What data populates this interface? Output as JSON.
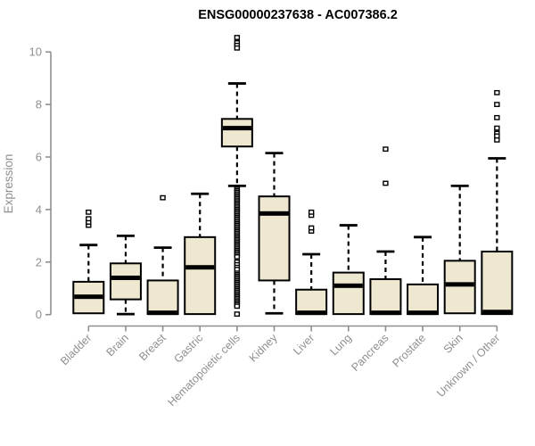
{
  "page": {
    "background": "#ffffff"
  },
  "colors": {
    "box_fill": "#EDE8CF",
    "box_stroke": "#000000",
    "median_color": "#000000",
    "whisker_color": "#000000",
    "outlier_stroke": "#000000",
    "outlier_fill": "#ffffff",
    "axis_color": "#8F8F8F",
    "label_color": "#8F8F8F",
    "title_color": "#000000"
  },
  "chart_data": {
    "type": "boxplot",
    "title": "ENSG00000237638 - AC007386.2",
    "xlabel": "",
    "ylabel": "Expression",
    "ylim": [
      0,
      10
    ],
    "yticks": [
      0,
      2,
      4,
      6,
      8,
      10
    ],
    "grid": false,
    "legend": "none",
    "categories": [
      "Bladder",
      "Brain",
      "Breast",
      "Gastric",
      "Hematopoietic cells",
      "Kidney",
      "Liver",
      "Lung",
      "Pancreas",
      "Prostate",
      "Skin",
      "Unknown / Other"
    ],
    "series": [
      {
        "category": "Bladder",
        "whisker_low": 0.05,
        "q1": 0.05,
        "median": 0.68,
        "q3": 1.25,
        "whisker_high": 2.65,
        "outliers": [
          3.4,
          3.52,
          3.65,
          3.9
        ]
      },
      {
        "category": "Brain",
        "whisker_low": 0.02,
        "q1": 0.58,
        "median": 1.4,
        "q3": 1.95,
        "whisker_high": 3.0,
        "outliers": []
      },
      {
        "category": "Breast",
        "whisker_low": 0.02,
        "q1": 0.02,
        "median": 0.07,
        "q3": 1.3,
        "whisker_high": 2.55,
        "outliers": [
          4.45
        ]
      },
      {
        "category": "Gastric",
        "whisker_low": 0.02,
        "q1": 0.02,
        "median": 1.8,
        "q3": 2.95,
        "whisker_high": 4.6,
        "outliers": []
      },
      {
        "category": "Hematopoietic cells",
        "whisker_low": 4.9,
        "q1": 6.4,
        "median": 7.1,
        "q3": 7.45,
        "whisker_high": 8.8,
        "outliers": [
          10.55,
          10.35,
          10.25,
          10.15,
          4.78,
          4.72,
          4.66,
          4.6,
          4.54,
          4.48,
          4.42,
          4.36,
          4.3,
          4.24,
          4.18,
          4.12,
          4.06,
          4.0,
          3.94,
          3.88,
          3.82,
          3.76,
          3.7,
          3.64,
          3.58,
          3.52,
          3.46,
          3.4,
          3.34,
          3.28,
          3.22,
          3.16,
          3.1,
          3.04,
          2.98,
          2.92,
          2.86,
          2.8,
          2.74,
          2.68,
          2.62,
          2.56,
          2.5,
          2.44,
          2.38,
          2.32,
          2.26,
          2.2,
          2.0,
          1.9,
          1.8,
          1.72,
          1.58,
          1.52,
          1.46,
          1.4,
          1.34,
          1.28,
          1.22,
          1.16,
          1.1,
          1.04,
          0.98,
          0.92,
          0.86,
          0.8,
          0.74,
          0.68,
          0.62,
          0.56,
          0.5,
          0.44,
          0.38,
          0.32,
          0.02
        ]
      },
      {
        "category": "Kidney",
        "whisker_low": 0.05,
        "q1": 1.3,
        "median": 3.85,
        "q3": 4.5,
        "whisker_high": 6.15,
        "outliers": []
      },
      {
        "category": "Liver",
        "whisker_low": 0.02,
        "q1": 0.02,
        "median": 0.07,
        "q3": 0.95,
        "whisker_high": 2.3,
        "outliers": [
          3.18,
          3.3,
          3.78,
          3.9
        ]
      },
      {
        "category": "Lung",
        "whisker_low": 0.02,
        "q1": 0.02,
        "median": 1.1,
        "q3": 1.6,
        "whisker_high": 3.4,
        "outliers": []
      },
      {
        "category": "Pancreas",
        "whisker_low": 0.02,
        "q1": 0.02,
        "median": 0.07,
        "q3": 1.35,
        "whisker_high": 2.4,
        "outliers": [
          5.0,
          6.3
        ]
      },
      {
        "category": "Prostate",
        "whisker_low": 0.02,
        "q1": 0.02,
        "median": 0.07,
        "q3": 1.15,
        "whisker_high": 2.95,
        "outliers": []
      },
      {
        "category": "Skin",
        "whisker_low": 0.05,
        "q1": 0.05,
        "median": 1.15,
        "q3": 2.05,
        "whisker_high": 4.9,
        "outliers": []
      },
      {
        "category": "Unknown / Other",
        "whisker_low": 0.02,
        "q1": 0.02,
        "median": 0.1,
        "q3": 2.4,
        "whisker_high": 5.95,
        "outliers": [
          8.45,
          8.0,
          7.5,
          7.1,
          6.9,
          6.8,
          6.65
        ]
      }
    ]
  }
}
